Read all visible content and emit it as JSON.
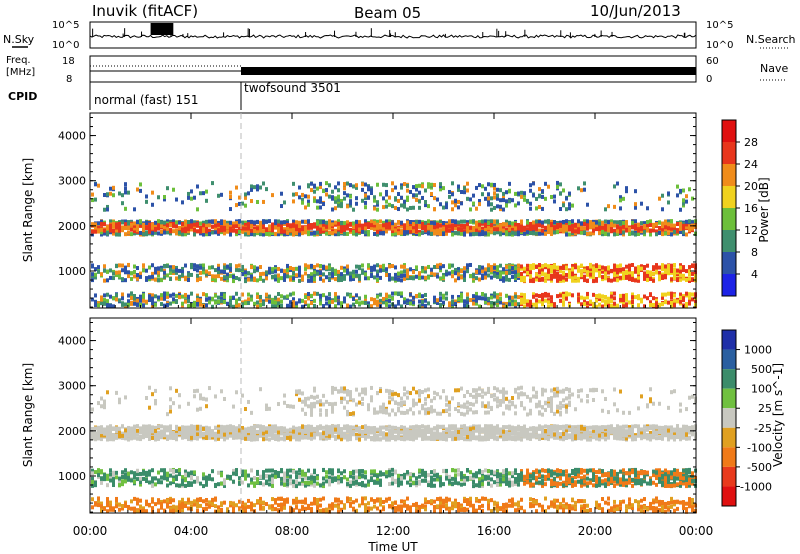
{
  "header": {
    "station": "Inuvik (fitACF)",
    "beam": "Beam 05",
    "date": "10/Jun/2013"
  },
  "top_panels": {
    "nsky_label": "N.Sky",
    "nsearch_label": "N.Search",
    "freq_label_line1": "Freq.",
    "freq_label_line2": "[MHz]",
    "nave_label": "Nave",
    "cpid_label": "CPID",
    "left_ticks_noise": [
      "10^5",
      "10^0"
    ],
    "right_ticks_noise": [
      "10^5",
      "10^0"
    ],
    "left_ticks_freq": [
      "18",
      "8"
    ],
    "right_ticks_nave": [
      "60",
      "0"
    ],
    "cpid_segments": [
      {
        "label": "normal (fast) 151",
        "start_hour": 0,
        "end_hour": 6
      },
      {
        "label": "twofsound 3501",
        "start_hour": 6,
        "end_hour": 24
      }
    ]
  },
  "x_axis": {
    "title": "Time UT",
    "ticks": [
      "00:00",
      "04:00",
      "08:00",
      "12:00",
      "16:00",
      "20:00",
      "00:00"
    ],
    "tick_hours": [
      0,
      4,
      8,
      12,
      16,
      20,
      24
    ]
  },
  "chart_data": [
    {
      "type": "heatmap",
      "name": "power",
      "ylabel": "Slant Range [km]",
      "ylim": [
        180,
        4500
      ],
      "yticks": [
        1000,
        2000,
        3000,
        4000
      ],
      "xlim_hours": [
        0,
        24
      ],
      "colorbar": {
        "label": "Power [dB]",
        "ticks": [
          "4",
          "8",
          "12",
          "16",
          "20",
          "24",
          "28"
        ],
        "colors": [
          "#1d23e6",
          "#2c52a8",
          "#3f8f6e",
          "#6cbf3a",
          "#f0d21e",
          "#f08c1a",
          "#e8361c",
          "#e01010"
        ]
      }
    },
    {
      "type": "heatmap",
      "name": "velocity",
      "ylabel": "Slant Range [km]",
      "ylim": [
        180,
        4500
      ],
      "yticks": [
        1000,
        2000,
        3000,
        4000
      ],
      "xlim_hours": [
        0,
        24
      ],
      "colorbar": {
        "label": "Velocity [m s^-1]",
        "ticks": [
          "1000",
          "500",
          "100",
          "25",
          "-25",
          "-100",
          "-500",
          "-1000"
        ],
        "colors": [
          "#1f2fa8",
          "#2a5fa0",
          "#3b8c6a",
          "#70c040",
          "#c8c8c0",
          "#e0a020",
          "#f07a18",
          "#e83a1c",
          "#e01010"
        ]
      }
    }
  ]
}
